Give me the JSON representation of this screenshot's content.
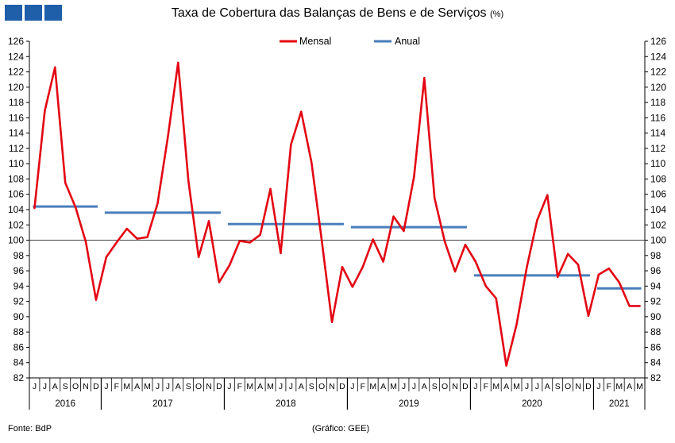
{
  "header": {
    "title": "Taxa de Cobertura das Balanças de Bens e de Serviços",
    "unit": "(%)"
  },
  "footer": {
    "source": "Fonte: BdP",
    "credit": "(Gráfico: GEE)"
  },
  "colors": {
    "monthly": "#e30613",
    "annual": "#4a7ebb",
    "logo": "#1f5ea8",
    "axis": "#000000",
    "ref_line": "#404040"
  },
  "chart_data": {
    "type": "line",
    "title": "Taxa de Cobertura das Balanças de Bens e de Serviços",
    "ylim": [
      82,
      126
    ],
    "yticks": [
      82,
      84,
      86,
      88,
      90,
      92,
      94,
      96,
      98,
      100,
      102,
      104,
      106,
      108,
      110,
      112,
      114,
      116,
      118,
      120,
      122,
      124,
      126
    ],
    "y_axis_both_sides": true,
    "reference_line": 100,
    "legend_placement": "top-center",
    "month_labels": [
      "J",
      "J",
      "A",
      "S",
      "O",
      "N",
      "D",
      "J",
      "F",
      "M",
      "A",
      "M",
      "J",
      "J",
      "A",
      "S",
      "O",
      "N",
      "D",
      "J",
      "F",
      "M",
      "A",
      "M",
      "J",
      "J",
      "A",
      "S",
      "O",
      "N",
      "D",
      "J",
      "F",
      "M",
      "A",
      "M",
      "J",
      "J",
      "A",
      "S",
      "O",
      "N",
      "D",
      "J",
      "F",
      "M",
      "A",
      "M",
      "J",
      "J",
      "A",
      "S",
      "O",
      "N",
      "D",
      "J",
      "F",
      "M",
      "A",
      "M"
    ],
    "year_groups": [
      {
        "label": "2016",
        "start": 0,
        "end": 6
      },
      {
        "label": "2017",
        "start": 7,
        "end": 18
      },
      {
        "label": "2018",
        "start": 19,
        "end": 30
      },
      {
        "label": "2019",
        "start": 31,
        "end": 42
      },
      {
        "label": "2020",
        "start": 43,
        "end": 54
      },
      {
        "label": "2021",
        "start": 55,
        "end": 59
      }
    ],
    "series": [
      {
        "name": "Mensal",
        "values": [
          104.2,
          116.9,
          122.6,
          107.5,
          104.3,
          99.8,
          92.2,
          97.8,
          99.7,
          101.5,
          100.2,
          100.4,
          104.8,
          113.5,
          123.2,
          107.8,
          97.8,
          102.5,
          94.5,
          96.7,
          99.9,
          99.7,
          100.7,
          106.7,
          98.3,
          112.5,
          116.8,
          110.2,
          100.0,
          89.3,
          96.5,
          93.9,
          96.5,
          100.1,
          97.2,
          103.1,
          101.2,
          108.3,
          121.2,
          105.5,
          99.8,
          95.9,
          99.4,
          97.2,
          94.0,
          92.4,
          83.6,
          89.0,
          96.5,
          102.6,
          105.9,
          95.2,
          98.2,
          96.8,
          90.1,
          95.5,
          96.3,
          94.5,
          91.4,
          91.4
        ]
      },
      {
        "name": "Anual",
        "segments": [
          {
            "year": "2016",
            "value": 104.4
          },
          {
            "year": "2017",
            "value": 103.6
          },
          {
            "year": "2018",
            "value": 102.1
          },
          {
            "year": "2019",
            "value": 101.7
          },
          {
            "year": "2020",
            "value": 95.4
          },
          {
            "year": "2021",
            "value": 93.7
          }
        ]
      }
    ]
  }
}
